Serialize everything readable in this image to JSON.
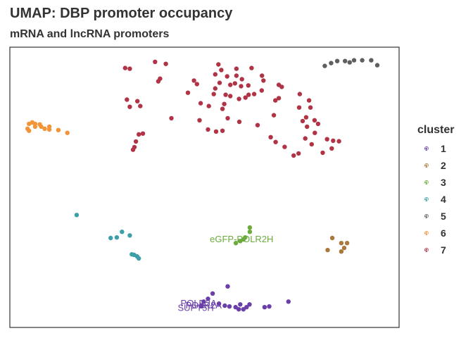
{
  "chart_data": {
    "type": "scatter",
    "title": "UMAP: DBP promoter occupancy",
    "subtitle": "mRNA and lncRNA promoters",
    "xlabel": "",
    "ylabel": "",
    "xlim": [
      -6.2,
      7.2
    ],
    "ylim": [
      -8.35,
      6.6
    ],
    "grid": false,
    "axes_visible": false,
    "legend": {
      "title": "cluster",
      "position": "right",
      "glyph": "a"
    },
    "series": [
      {
        "name": "1",
        "color": "#6A3FA8",
        "points": [
          [
            0.47,
            -6.97
          ],
          [
            0.62,
            -6.82
          ],
          [
            0.78,
            -6.54
          ],
          [
            0.4,
            -7.19
          ],
          [
            1.0,
            -7.08
          ],
          [
            1.2,
            -7.19
          ],
          [
            1.36,
            -7.23
          ],
          [
            1.57,
            -7.27
          ],
          [
            1.73,
            -7.12
          ],
          [
            1.84,
            -7.38
          ],
          [
            1.95,
            -7.27
          ],
          [
            2.05,
            -7.12
          ],
          [
            1.68,
            -7.38
          ],
          [
            1.3,
            -6.16
          ],
          [
            2.57,
            -7.27
          ],
          [
            2.73,
            -7.23
          ],
          [
            3.39,
            -6.97
          ]
        ],
        "labels": [
          {
            "text": "POLR2A",
            "x": 0.47,
            "y": -7.19
          },
          {
            "text": "SUPT5H",
            "x": 0.2,
            "y": -7.31
          },
          {
            "text": "POLR2A",
            "x": 0.3,
            "y": -7.08
          }
        ]
      },
      {
        "name": "2",
        "color": "#A9783C",
        "points": [
          [
            4.9,
            -3.58
          ],
          [
            5.21,
            -3.85
          ],
          [
            5.31,
            -4.11
          ],
          [
            5.41,
            -3.85
          ],
          [
            5.21,
            -4.3
          ],
          [
            4.74,
            -4.22
          ]
        ]
      },
      {
        "name": "3",
        "color": "#6AAB3B",
        "points": [
          [
            2.06,
            -3.25
          ],
          [
            2.06,
            -3.02
          ],
          [
            1.9,
            -3.55
          ],
          [
            1.84,
            -3.66
          ],
          [
            1.73,
            -3.74
          ],
          [
            1.58,
            -3.85
          ]
        ],
        "labels": [
          {
            "text": "eGFP-POLR2H",
            "x": 1.78,
            "y": -3.66
          }
        ]
      },
      {
        "name": "4",
        "color": "#3DA0A8",
        "points": [
          [
            -3.9,
            -2.35
          ],
          [
            -2.07,
            -3.44
          ],
          [
            -2.34,
            -3.25
          ],
          [
            -2.52,
            -3.55
          ],
          [
            -2.73,
            -3.58
          ],
          [
            -2.0,
            -4.45
          ],
          [
            -1.82,
            -4.56
          ],
          [
            -1.92,
            -4.48
          ],
          [
            -1.76,
            -4.67
          ]
        ]
      },
      {
        "name": "5",
        "color": "#5F5F5F",
        "points": [
          [
            4.64,
            5.6
          ],
          [
            4.86,
            5.75
          ],
          [
            5.07,
            5.86
          ],
          [
            5.34,
            5.86
          ],
          [
            5.5,
            5.79
          ],
          [
            5.65,
            5.9
          ],
          [
            5.93,
            5.9
          ],
          [
            6.24,
            5.9
          ],
          [
            6.45,
            5.64
          ]
        ]
      },
      {
        "name": "6",
        "color": "#F39439",
        "points": [
          [
            -5.54,
            2.51
          ],
          [
            -5.43,
            2.59
          ],
          [
            -5.33,
            2.51
          ],
          [
            -5.17,
            2.48
          ],
          [
            -5.33,
            2.36
          ],
          [
            -5.59,
            2.25
          ],
          [
            -5.54,
            2.14
          ],
          [
            -5.12,
            2.36
          ],
          [
            -5.0,
            2.25
          ],
          [
            -4.84,
            2.36
          ],
          [
            -4.84,
            2.21
          ],
          [
            -4.53,
            2.18
          ],
          [
            -4.22,
            2.03
          ]
        ]
      },
      {
        "name": "7",
        "color": "#B03446",
        "points": [
          [
            -1.2,
            5.82
          ],
          [
            -0.83,
            5.71
          ],
          [
            -2.23,
            5.49
          ],
          [
            -2.07,
            5.45
          ],
          [
            0.98,
            5.68
          ],
          [
            1.08,
            5.38
          ],
          [
            1.6,
            5.45
          ],
          [
            2.12,
            5.49
          ],
          [
            0.87,
            5.15
          ],
          [
            1.28,
            5.04
          ],
          [
            1.6,
            5.08
          ],
          [
            2.48,
            5.08
          ],
          [
            -1.03,
            4.92
          ],
          [
            0.14,
            4.82
          ],
          [
            1.79,
            4.89
          ],
          [
            2.53,
            4.82
          ],
          [
            -1.09,
            4.78
          ],
          [
            0.24,
            4.63
          ],
          [
            1.55,
            4.67
          ],
          [
            1.39,
            4.59
          ],
          [
            1.02,
            4.7
          ],
          [
            1.76,
            4.52
          ],
          [
            2.01,
            4.56
          ],
          [
            3.06,
            4.59
          ],
          [
            3.16,
            4.48
          ],
          [
            0.87,
            4.4
          ],
          [
            -0.07,
            4.17
          ],
          [
            2.21,
            4.1
          ],
          [
            2.47,
            4.29
          ],
          [
            3.06,
            3.88
          ],
          [
            0.82,
            4.1
          ],
          [
            1.23,
            4.06
          ],
          [
            1.39,
            3.99
          ],
          [
            2.02,
            4.06
          ],
          [
            2.94,
            3.76
          ],
          [
            1.91,
            3.91
          ],
          [
            1.18,
            3.57
          ],
          [
            1.69,
            3.84
          ],
          [
            -2.17,
            3.8
          ],
          [
            -1.81,
            3.72
          ],
          [
            0.37,
            3.61
          ],
          [
            -2.07,
            3.42
          ],
          [
            -1.71,
            3.46
          ],
          [
            0.65,
            3.46
          ],
          [
            1.12,
            3.31
          ],
          [
            3.78,
            4.1
          ],
          [
            4.1,
            3.76
          ],
          [
            3.76,
            3.38
          ],
          [
            4.15,
            3.38
          ],
          [
            1.3,
            2.81
          ],
          [
            4.0,
            2.86
          ],
          [
            2.89,
            2.97
          ],
          [
            3.88,
            2.66
          ],
          [
            4.29,
            2.7
          ],
          [
            -0.64,
            2.81
          ],
          [
            0.33,
            2.7
          ],
          [
            1.7,
            2.62
          ],
          [
            4.41,
            2.51
          ],
          [
            2.33,
            2.44
          ],
          [
            0.62,
            2.21
          ],
          [
            0.9,
            2.1
          ],
          [
            1.12,
            2.14
          ],
          [
            4.3,
            2.03
          ],
          [
            4.03,
            2.36
          ],
          [
            -1.76,
            1.95
          ],
          [
            -1.62,
            1.99
          ],
          [
            2.78,
            1.8
          ],
          [
            4.72,
            1.69
          ],
          [
            3.97,
            1.73
          ],
          [
            4.93,
            1.61
          ],
          [
            5.13,
            1.58
          ],
          [
            4.19,
            1.42
          ],
          [
            -1.86,
            1.57
          ],
          [
            2.95,
            1.54
          ],
          [
            3.26,
            1.28
          ],
          [
            -1.91,
            1.27
          ],
          [
            -1.96,
            1.13
          ],
          [
            4.88,
            1.2
          ],
          [
            3.74,
            0.93
          ],
          [
            4.57,
            0.97
          ],
          [
            3.57,
            0.82
          ]
        ]
      }
    ]
  }
}
